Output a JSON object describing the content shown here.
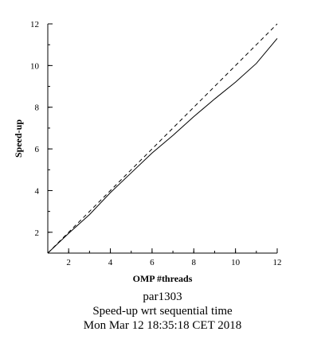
{
  "chart_data": {
    "type": "line",
    "xlabel": "OMP #threads",
    "ylabel": "Speed-up",
    "xlim": [
      1,
      12
    ],
    "ylim": [
      1,
      12
    ],
    "xticks": [
      2,
      4,
      6,
      8,
      10,
      12
    ],
    "yticks": [
      2,
      4,
      6,
      8,
      10,
      12
    ],
    "series": [
      {
        "style": "solid",
        "x": [
          1,
          2,
          3,
          4,
          5,
          6,
          7,
          8,
          9,
          10,
          11,
          12
        ],
        "y": [
          1.0,
          1.95,
          2.85,
          3.9,
          4.85,
          5.8,
          6.65,
          7.55,
          8.4,
          9.2,
          10.1,
          11.3
        ]
      },
      {
        "style": "dashed",
        "x": [
          1,
          2,
          3,
          4,
          5,
          6,
          7,
          8,
          9,
          10,
          11,
          12
        ],
        "y": [
          1,
          2,
          3,
          4,
          5,
          6,
          7,
          8,
          9,
          10,
          11,
          12
        ]
      }
    ]
  },
  "captions": {
    "line1": "par1303",
    "line2": "Speed-up wrt sequential time",
    "line3": "Mon Mar 12 18:35:18 CET 2018"
  }
}
